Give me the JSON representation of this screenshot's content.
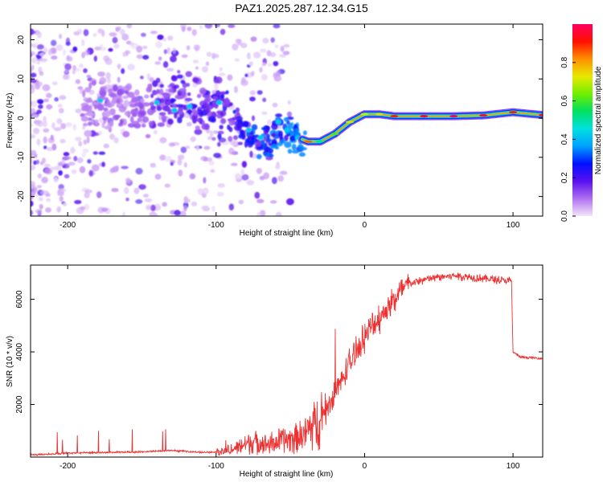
{
  "title": "PAZ1.2025.287.12.34.G15",
  "colors": {
    "snr_line": "#ee3030",
    "dot_purple": "#6a1cf0",
    "dot_light": "#c8a6f2",
    "frame": "#000000",
    "colorbar_stops": [
      "#f2e6fa",
      "#b070f0",
      "#5a10f0",
      "#0010ff",
      "#00a0ff",
      "#00e0e0",
      "#00e060",
      "#70ee00",
      "#e8e800",
      "#ff9000",
      "#ff1000",
      "#ff0060"
    ]
  },
  "chart_data": [
    {
      "type": "heatmap",
      "title": "PAZ1.2025.287.12.34.G15",
      "xlabel": "Height of straight line (km)",
      "ylabel": "Frequency (Hz)",
      "xlim": [
        -225,
        120
      ],
      "ylim": [
        -25,
        24
      ],
      "xticks": [
        -200,
        -100,
        0,
        100
      ],
      "xtick_labels": [
        "-200",
        "-100",
        "0",
        "100"
      ],
      "yticks": [
        -20,
        -10,
        0,
        10,
        20
      ],
      "ytick_labels": [
        "-20",
        "-10",
        "0",
        "10",
        "20"
      ],
      "colorbar": {
        "label": "Normalized spectral amplitude",
        "range": [
          0,
          1
        ],
        "ticks": [
          0.0,
          0.2,
          0.4,
          0.6,
          0.8
        ],
        "tick_labels": [
          "0.0",
          "0.2",
          "0.4",
          "0.6",
          "0.8"
        ]
      },
      "ridge": {
        "x": [
          -180,
          -150,
          -130,
          -110,
          -95,
          -85,
          -75,
          -65,
          -55,
          -45,
          -38,
          -30,
          -20,
          -10,
          0,
          10,
          20,
          40,
          60,
          80,
          100,
          120
        ],
        "freq": [
          4,
          3,
          5,
          3,
          3,
          -2,
          -5,
          -6,
          -3,
          -5,
          -6,
          -6,
          -4,
          -1,
          1,
          1,
          0.5,
          0.5,
          0.5,
          0.7,
          1.5,
          0.8
        ],
        "amplitude": [
          0.1,
          0.12,
          0.2,
          0.2,
          0.22,
          0.25,
          0.3,
          0.3,
          0.45,
          0.6,
          0.85,
          0.5,
          0.6,
          0.7,
          0.7,
          0.75,
          0.9,
          0.95,
          1.0,
          0.95,
          0.9,
          0.95
        ]
      }
    },
    {
      "type": "line",
      "xlabel": "Height of straight line (km)",
      "ylabel": "SNR (10 * v/v)",
      "xlim": [
        -225,
        120
      ],
      "ylim": [
        0,
        7300
      ],
      "xticks": [
        -200,
        -100,
        0,
        100
      ],
      "xtick_labels": [
        "-200",
        "-100",
        "0",
        "100"
      ],
      "yticks": [
        2000,
        4000,
        6000
      ],
      "ytick_labels": [
        "2000",
        "4000",
        "6000"
      ],
      "series": [
        {
          "name": "SNR",
          "x": [
            -225,
            -200,
            -150,
            -130,
            -110,
            -95,
            -85,
            -75,
            -65,
            -50,
            -40,
            -30,
            -20,
            -10,
            0,
            10,
            20,
            30,
            45,
            60,
            80,
            95,
            99,
            100,
            105,
            120
          ],
          "y": [
            80,
            150,
            200,
            250,
            180,
            200,
            400,
            600,
            500,
            700,
            900,
            1500,
            2400,
            3600,
            4600,
            5300,
            6000,
            6600,
            6800,
            6900,
            6800,
            6700,
            6700,
            4000,
            3800,
            3750
          ]
        }
      ]
    }
  ]
}
